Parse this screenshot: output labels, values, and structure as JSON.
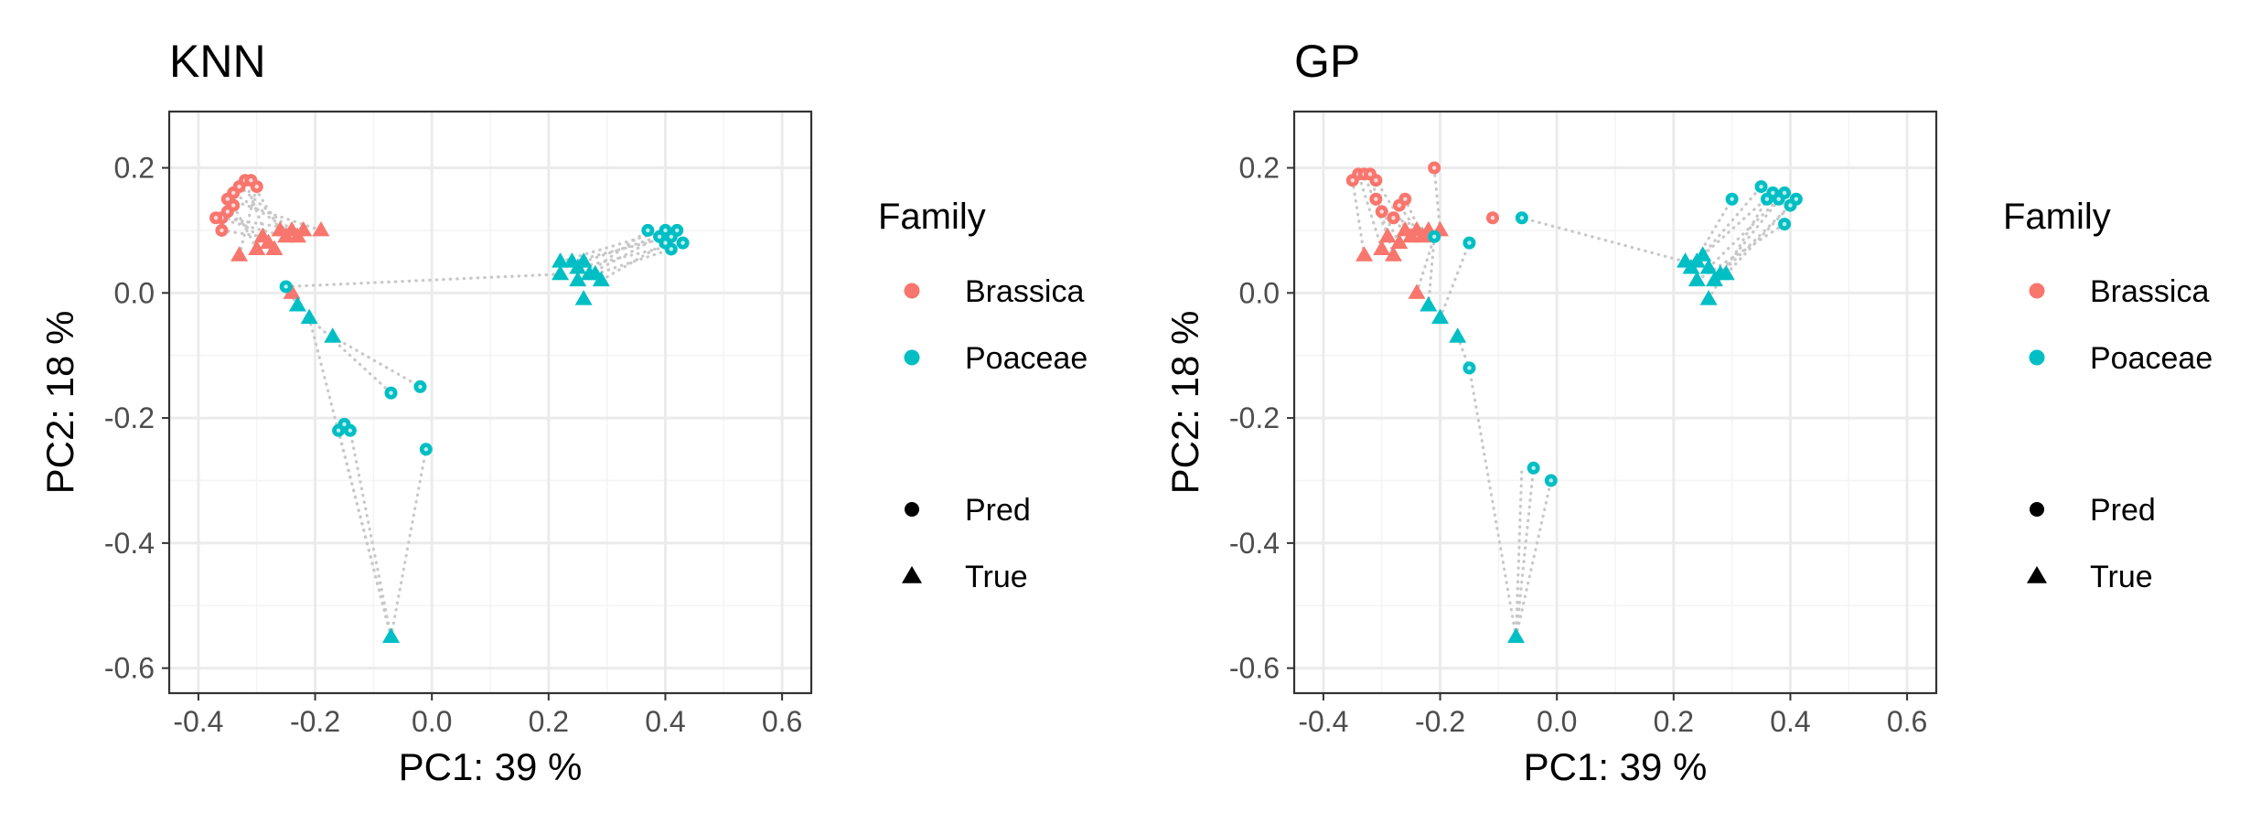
{
  "chart_data": [
    {
      "type": "scatter",
      "title": "KNN",
      "xlabel": "PC1: 39 %",
      "ylabel": "PC2: 18 %",
      "xlim": [
        -0.45,
        0.65
      ],
      "ylim": [
        -0.64,
        0.29
      ],
      "xticks": [
        -0.4,
        -0.2,
        0.0,
        0.2,
        0.4,
        0.6
      ],
      "xtick_labels": [
        "-0.4",
        "-0.2",
        "0.0",
        "0.2",
        "0.4",
        "0.6"
      ],
      "yticks": [
        0.2,
        0.0,
        -0.2,
        -0.4,
        -0.6
      ],
      "ytick_labels": [
        "0.2",
        "0.0",
        "-0.2",
        "-0.4",
        "-0.6"
      ],
      "grid": true,
      "legend": {
        "color_title": "Family",
        "color_entries": [
          {
            "label": "Brassica",
            "color": "#F8766D"
          },
          {
            "label": "Poaceae",
            "color": "#00BFC4"
          }
        ],
        "shape_entries": [
          {
            "label": "Pred",
            "shape": "circle"
          },
          {
            "label": "True",
            "shape": "triangle"
          }
        ],
        "placement": "right"
      },
      "series": [
        {
          "family": "Brassica",
          "type": "True",
          "points": [
            [
              -0.33,
              0.06
            ],
            [
              -0.3,
              0.07
            ],
            [
              -0.28,
              0.08
            ],
            [
              -0.27,
              0.07
            ],
            [
              -0.29,
              0.09
            ],
            [
              -0.26,
              0.1
            ],
            [
              -0.25,
              0.09
            ],
            [
              -0.24,
              0.1
            ],
            [
              -0.23,
              0.09
            ],
            [
              -0.22,
              0.1
            ],
            [
              -0.19,
              0.1
            ],
            [
              -0.24,
              0.0
            ]
          ]
        },
        {
          "family": "Brassica",
          "type": "Pred",
          "points": [
            [
              -0.36,
              0.12
            ],
            [
              -0.37,
              0.12
            ],
            [
              -0.36,
              0.1
            ],
            [
              -0.35,
              0.13
            ],
            [
              -0.35,
              0.15
            ],
            [
              -0.34,
              0.16
            ],
            [
              -0.33,
              0.17
            ],
            [
              -0.32,
              0.18
            ],
            [
              -0.31,
              0.18
            ],
            [
              -0.3,
              0.17
            ],
            [
              -0.34,
              0.14
            ]
          ]
        },
        {
          "family": "Poaceae",
          "type": "True",
          "points": [
            [
              -0.23,
              -0.02
            ],
            [
              -0.21,
              -0.04
            ],
            [
              -0.17,
              -0.07
            ],
            [
              -0.07,
              -0.55
            ],
            [
              0.22,
              0.03
            ],
            [
              0.22,
              0.05
            ],
            [
              0.24,
              0.05
            ],
            [
              0.25,
              0.04
            ],
            [
              0.26,
              0.05
            ],
            [
              0.27,
              0.03
            ],
            [
              0.28,
              0.03
            ],
            [
              0.29,
              0.02
            ],
            [
              0.25,
              0.02
            ],
            [
              0.26,
              -0.01
            ]
          ]
        },
        {
          "family": "Poaceae",
          "type": "Pred",
          "points": [
            [
              -0.25,
              0.01
            ],
            [
              -0.07,
              -0.16
            ],
            [
              -0.02,
              -0.15
            ],
            [
              -0.01,
              -0.25
            ],
            [
              -0.16,
              -0.22
            ],
            [
              -0.15,
              -0.21
            ],
            [
              -0.14,
              -0.22
            ],
            [
              0.37,
              0.1
            ],
            [
              0.39,
              0.09
            ],
            [
              0.4,
              0.1
            ],
            [
              0.41,
              0.09
            ],
            [
              0.42,
              0.1
            ],
            [
              0.43,
              0.08
            ],
            [
              0.41,
              0.07
            ],
            [
              0.4,
              0.08
            ]
          ]
        }
      ],
      "links": [
        [
          [
            -0.33,
            0.06
          ],
          [
            -0.3,
            0.17
          ]
        ],
        [
          [
            -0.3,
            0.07
          ],
          [
            -0.34,
            0.14
          ]
        ],
        [
          [
            -0.28,
            0.08
          ],
          [
            -0.32,
            0.18
          ]
        ],
        [
          [
            -0.27,
            0.07
          ],
          [
            -0.35,
            0.13
          ]
        ],
        [
          [
            -0.26,
            0.1
          ],
          [
            -0.31,
            0.18
          ]
        ],
        [
          [
            -0.24,
            0.1
          ],
          [
            -0.33,
            0.17
          ]
        ],
        [
          [
            -0.22,
            0.1
          ],
          [
            -0.36,
            0.12
          ]
        ],
        [
          [
            -0.19,
            0.1
          ],
          [
            -0.35,
            0.15
          ]
        ],
        [
          [
            -0.29,
            0.09
          ],
          [
            -0.36,
            0.1
          ]
        ],
        [
          [
            -0.25,
            0.09
          ],
          [
            -0.37,
            0.12
          ]
        ],
        [
          [
            -0.23,
            0.09
          ],
          [
            -0.34,
            0.16
          ]
        ],
        [
          [
            -0.24,
            0.0
          ],
          [
            -0.25,
            0.01
          ]
        ],
        [
          [
            -0.23,
            -0.02
          ],
          [
            -0.25,
            0.01
          ]
        ],
        [
          [
            -0.21,
            -0.04
          ],
          [
            -0.07,
            -0.16
          ]
        ],
        [
          [
            -0.17,
            -0.07
          ],
          [
            -0.02,
            -0.15
          ]
        ],
        [
          [
            -0.07,
            -0.55
          ],
          [
            -0.16,
            -0.22
          ]
        ],
        [
          [
            -0.07,
            -0.55
          ],
          [
            -0.14,
            -0.22
          ]
        ],
        [
          [
            -0.07,
            -0.55
          ],
          [
            -0.01,
            -0.25
          ]
        ],
        [
          [
            -0.07,
            -0.55
          ],
          [
            -0.21,
            -0.04
          ]
        ],
        [
          [
            0.22,
            0.03
          ],
          [
            -0.25,
            0.01
          ]
        ],
        [
          [
            0.22,
            0.05
          ],
          [
            0.4,
            0.1
          ]
        ],
        [
          [
            0.24,
            0.05
          ],
          [
            0.41,
            0.09
          ]
        ],
        [
          [
            0.25,
            0.04
          ],
          [
            0.43,
            0.08
          ]
        ],
        [
          [
            0.26,
            0.05
          ],
          [
            0.42,
            0.1
          ]
        ],
        [
          [
            0.27,
            0.03
          ],
          [
            0.39,
            0.09
          ]
        ],
        [
          [
            0.28,
            0.03
          ],
          [
            0.41,
            0.07
          ]
        ],
        [
          [
            0.29,
            0.02
          ],
          [
            0.4,
            0.08
          ]
        ],
        [
          [
            0.25,
            0.02
          ],
          [
            0.37,
            0.1
          ]
        ]
      ]
    },
    {
      "type": "scatter",
      "title": "GP",
      "xlabel": "PC1: 39 %",
      "ylabel": "PC2: 18 %",
      "xlim": [
        -0.45,
        0.65
      ],
      "ylim": [
        -0.64,
        0.29
      ],
      "xticks": [
        -0.4,
        -0.2,
        0.0,
        0.2,
        0.4,
        0.6
      ],
      "xtick_labels": [
        "-0.4",
        "-0.2",
        "0.0",
        "0.2",
        "0.4",
        "0.6"
      ],
      "yticks": [
        0.2,
        0.0,
        -0.2,
        -0.4,
        -0.6
      ],
      "ytick_labels": [
        "0.2",
        "0.0",
        "-0.2",
        "-0.4",
        "-0.6"
      ],
      "grid": true,
      "legend": {
        "color_title": "Family",
        "color_entries": [
          {
            "label": "Brassica",
            "color": "#F8766D"
          },
          {
            "label": "Poaceae",
            "color": "#00BFC4"
          }
        ],
        "shape_entries": [
          {
            "label": "Pred",
            "shape": "circle"
          },
          {
            "label": "True",
            "shape": "triangle"
          }
        ],
        "placement": "right"
      },
      "series": [
        {
          "family": "Brassica",
          "type": "True",
          "points": [
            [
              -0.33,
              0.06
            ],
            [
              -0.3,
              0.07
            ],
            [
              -0.29,
              0.09
            ],
            [
              -0.28,
              0.06
            ],
            [
              -0.27,
              0.08
            ],
            [
              -0.26,
              0.1
            ],
            [
              -0.25,
              0.09
            ],
            [
              -0.24,
              0.1
            ],
            [
              -0.23,
              0.09
            ],
            [
              -0.22,
              0.1
            ],
            [
              -0.2,
              0.1
            ],
            [
              -0.24,
              0.0
            ]
          ]
        },
        {
          "family": "Brassica",
          "type": "Pred",
          "points": [
            [
              -0.35,
              0.18
            ],
            [
              -0.34,
              0.19
            ],
            [
              -0.33,
              0.19
            ],
            [
              -0.32,
              0.19
            ],
            [
              -0.31,
              0.18
            ],
            [
              -0.31,
              0.15
            ],
            [
              -0.3,
              0.13
            ],
            [
              -0.27,
              0.14
            ],
            [
              -0.26,
              0.15
            ],
            [
              -0.28,
              0.12
            ],
            [
              -0.21,
              0.2
            ],
            [
              -0.11,
              0.12
            ]
          ]
        },
        {
          "family": "Poaceae",
          "type": "True",
          "points": [
            [
              -0.22,
              -0.02
            ],
            [
              -0.2,
              -0.04
            ],
            [
              -0.17,
              -0.07
            ],
            [
              -0.07,
              -0.55
            ],
            [
              0.22,
              0.05
            ],
            [
              0.23,
              0.04
            ],
            [
              0.24,
              0.05
            ],
            [
              0.25,
              0.06
            ],
            [
              0.26,
              0.04
            ],
            [
              0.27,
              0.02
            ],
            [
              0.28,
              0.03
            ],
            [
              0.29,
              0.03
            ],
            [
              0.24,
              0.02
            ],
            [
              0.26,
              -0.01
            ]
          ]
        },
        {
          "family": "Poaceae",
          "type": "Pred",
          "points": [
            [
              -0.21,
              0.09
            ],
            [
              -0.15,
              0.08
            ],
            [
              -0.06,
              0.12
            ],
            [
              -0.15,
              -0.12
            ],
            [
              -0.04,
              -0.28
            ],
            [
              -0.01,
              -0.3
            ],
            [
              0.3,
              0.15
            ],
            [
              0.35,
              0.17
            ],
            [
              0.37,
              0.16
            ],
            [
              0.38,
              0.15
            ],
            [
              0.39,
              0.16
            ],
            [
              0.4,
              0.14
            ],
            [
              0.41,
              0.15
            ],
            [
              0.39,
              0.11
            ],
            [
              0.36,
              0.15
            ]
          ]
        }
      ],
      "links": [
        [
          [
            -0.33,
            0.06
          ],
          [
            -0.35,
            0.18
          ]
        ],
        [
          [
            -0.3,
            0.07
          ],
          [
            -0.34,
            0.19
          ]
        ],
        [
          [
            -0.29,
            0.09
          ],
          [
            -0.33,
            0.19
          ]
        ],
        [
          [
            -0.28,
            0.06
          ],
          [
            -0.32,
            0.19
          ]
        ],
        [
          [
            -0.27,
            0.08
          ],
          [
            -0.31,
            0.15
          ]
        ],
        [
          [
            -0.26,
            0.1
          ],
          [
            -0.3,
            0.13
          ]
        ],
        [
          [
            -0.25,
            0.09
          ],
          [
            -0.31,
            0.18
          ]
        ],
        [
          [
            -0.24,
            0.1
          ],
          [
            -0.27,
            0.14
          ]
        ],
        [
          [
            -0.23,
            0.09
          ],
          [
            -0.26,
            0.15
          ]
        ],
        [
          [
            -0.22,
            0.1
          ],
          [
            -0.28,
            0.12
          ]
        ],
        [
          [
            -0.2,
            0.1
          ],
          [
            -0.21,
            0.2
          ]
        ],
        [
          [
            -0.24,
            0.0
          ],
          [
            -0.21,
            0.09
          ]
        ],
        [
          [
            -0.22,
            -0.02
          ],
          [
            -0.21,
            0.09
          ]
        ],
        [
          [
            -0.2,
            -0.04
          ],
          [
            -0.15,
            0.08
          ]
        ],
        [
          [
            -0.17,
            -0.07
          ],
          [
            -0.15,
            -0.12
          ]
        ],
        [
          [
            -0.07,
            -0.55
          ],
          [
            -0.15,
            -0.12
          ]
        ],
        [
          [
            -0.07,
            -0.55
          ],
          [
            -0.04,
            -0.28
          ]
        ],
        [
          [
            -0.07,
            -0.55
          ],
          [
            -0.01,
            -0.3
          ]
        ],
        [
          [
            -0.07,
            -0.55
          ],
          [
            -0.06,
            -0.28
          ]
        ],
        [
          [
            0.22,
            0.05
          ],
          [
            -0.06,
            0.12
          ]
        ],
        [
          [
            0.23,
            0.04
          ],
          [
            0.3,
            0.15
          ]
        ],
        [
          [
            0.24,
            0.05
          ],
          [
            0.35,
            0.17
          ]
        ],
        [
          [
            0.25,
            0.06
          ],
          [
            0.37,
            0.16
          ]
        ],
        [
          [
            0.26,
            0.04
          ],
          [
            0.38,
            0.15
          ]
        ],
        [
          [
            0.27,
            0.02
          ],
          [
            0.39,
            0.16
          ]
        ],
        [
          [
            0.28,
            0.03
          ],
          [
            0.4,
            0.14
          ]
        ],
        [
          [
            0.29,
            0.03
          ],
          [
            0.41,
            0.15
          ]
        ],
        [
          [
            0.24,
            0.02
          ],
          [
            0.39,
            0.11
          ]
        ],
        [
          [
            0.26,
            -0.01
          ],
          [
            0.36,
            0.15
          ]
        ]
      ]
    }
  ]
}
